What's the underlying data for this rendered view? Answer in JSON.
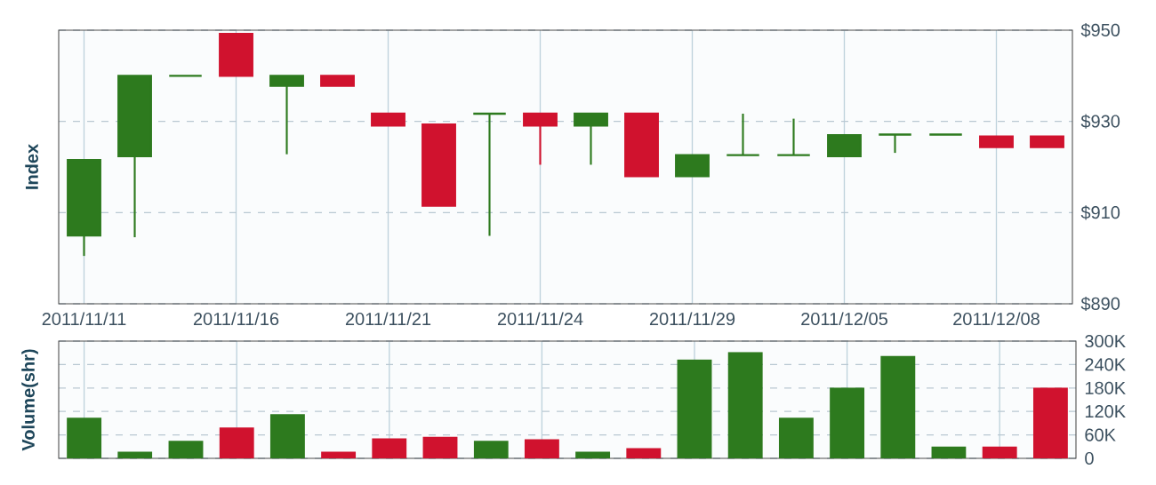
{
  "chart_data": [
    {
      "type": "candlestick",
      "ylabel": "Index",
      "categories": [
        "2011/11/11",
        null,
        null,
        "2011/11/16",
        null,
        null,
        "2011/11/21",
        null,
        null,
        "2011/11/24",
        null,
        null,
        "2011/11/29",
        null,
        null,
        "2011/12/05",
        null,
        null,
        "2011/12/08",
        null
      ],
      "ohlc": [
        [
          905,
          921.5,
          900.5,
          921.5
        ],
        [
          922.4,
          940,
          904.6,
          940
        ],
        [
          940,
          940,
          940,
          940
        ],
        [
          949.2,
          949.2,
          940,
          940
        ],
        [
          937.8,
          940,
          922.8,
          940
        ],
        [
          940,
          940,
          937.8,
          937.8
        ],
        [
          931.7,
          931.7,
          929.1,
          929.1
        ],
        [
          929.3,
          929.3,
          911.5,
          911.5
        ],
        [
          931.7,
          931.7,
          904.9,
          931.7
        ],
        [
          931.7,
          931.7,
          920.5,
          929.1
        ],
        [
          929.1,
          931.7,
          920.5,
          931.7
        ],
        [
          931.7,
          931.7,
          918,
          918
        ],
        [
          918,
          922.6,
          918,
          922.6
        ],
        [
          922.6,
          931.7,
          922.6,
          922.6
        ],
        [
          922.6,
          930.6,
          922.6,
          922.6
        ],
        [
          922.4,
          927,
          922.4,
          927
        ],
        [
          927.1,
          927.1,
          923.1,
          927.1
        ],
        [
          927.1,
          927.1,
          927.1,
          927.1
        ],
        [
          926.7,
          926.7,
          924.4,
          924.4
        ],
        [
          926.7,
          926.7,
          924.4,
          924.4
        ]
      ],
      "colors": [
        "#2d7a1e",
        "#2d7a1e",
        "#2d7a1e",
        "#d0122e",
        "#2d7a1e",
        "#d0122e",
        "#d0122e",
        "#d0122e",
        "#2d7a1e",
        "#d0122e",
        "#2d7a1e",
        "#d0122e",
        "#2d7a1e",
        "#2d7a1e",
        "#2d7a1e",
        "#2d7a1e",
        "#2d7a1e",
        "#2d7a1e",
        "#d0122e",
        "#d0122e"
      ],
      "ylim": [
        890,
        950
      ],
      "yticks": [
        {
          "value": 890,
          "label": "$890"
        },
        {
          "value": 910,
          "label": "$910"
        },
        {
          "value": 930,
          "label": "$930"
        },
        {
          "value": 950,
          "label": "$950"
        }
      ],
      "grid": true
    },
    {
      "type": "bar",
      "ylabel": "Volume(shr)",
      "categories": [
        "2011/11/11",
        null,
        null,
        "2011/11/16",
        null,
        null,
        "2011/11/21",
        null,
        null,
        "2011/11/24",
        null,
        null,
        "2011/11/29",
        null,
        null,
        "2011/12/05",
        null,
        null,
        "2011/12/08",
        null
      ],
      "values": [
        104,
        17,
        45,
        79,
        113,
        17,
        51,
        55,
        45,
        49,
        17,
        26,
        253,
        272,
        104,
        181,
        262,
        30,
        30,
        181
      ],
      "colors": [
        "#2d7a1e",
        "#2d7a1e",
        "#2d7a1e",
        "#d0122e",
        "#2d7a1e",
        "#d0122e",
        "#d0122e",
        "#d0122e",
        "#2d7a1e",
        "#d0122e",
        "#2d7a1e",
        "#d0122e",
        "#2d7a1e",
        "#2d7a1e",
        "#2d7a1e",
        "#2d7a1e",
        "#2d7a1e",
        "#2d7a1e",
        "#d0122e",
        "#d0122e"
      ],
      "ylim": [
        0,
        300
      ],
      "yticks": [
        {
          "value": 0,
          "label": "0"
        },
        {
          "value": 60,
          "label": "60K"
        },
        {
          "value": 120,
          "label": "120K"
        },
        {
          "value": 180,
          "label": "180K"
        },
        {
          "value": 240,
          "label": "240K"
        },
        {
          "value": 300,
          "label": "300K"
        }
      ],
      "grid": true,
      "tick_labels": "y"
    }
  ]
}
